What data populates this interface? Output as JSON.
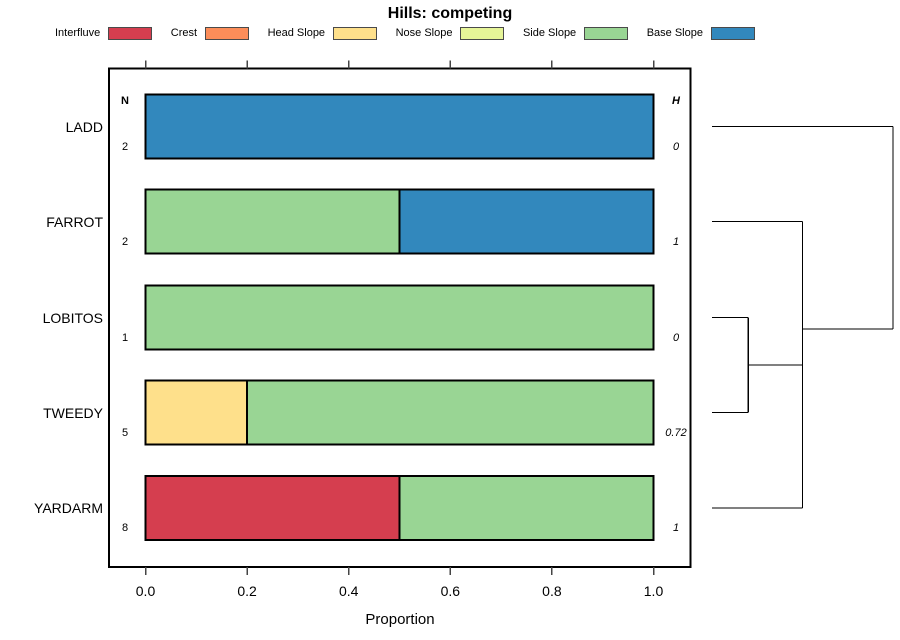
{
  "title": "Hills: competing",
  "legend": {
    "items": [
      {
        "label": "Interfluve",
        "color": "#D53E4F"
      },
      {
        "label": "Crest",
        "color": "#FC8D59"
      },
      {
        "label": "Head Slope",
        "color": "#FEE08B"
      },
      {
        "label": "Nose Slope",
        "color": "#E6F598"
      },
      {
        "label": "Side Slope",
        "color": "#99D594"
      },
      {
        "label": "Base Slope",
        "color": "#3288BD"
      }
    ]
  },
  "chart_data": {
    "type": "bar",
    "orientation": "horizontal",
    "stacked": true,
    "grid": false,
    "legend_position": "top",
    "title": "Hills: competing",
    "xlabel": "Proportion",
    "xlim": [
      0,
      1
    ],
    "xticks": [
      "0.0",
      "0.2",
      "0.4",
      "0.6",
      "0.8",
      "1.0"
    ],
    "categories": [
      "LADD",
      "FARROT",
      "LOBITOS",
      "TWEEDY",
      "YARDARM"
    ],
    "series": [
      {
        "name": "Interfluve",
        "color": "#D53E4F",
        "values": [
          0,
          0,
          0,
          0,
          0.5
        ]
      },
      {
        "name": "Crest",
        "color": "#FC8D59",
        "values": [
          0,
          0,
          0,
          0,
          0
        ]
      },
      {
        "name": "Head Slope",
        "color": "#FEE08B",
        "values": [
          0,
          0,
          0,
          0.2,
          0
        ]
      },
      {
        "name": "Nose Slope",
        "color": "#E6F598",
        "values": [
          0,
          0,
          0,
          0,
          0
        ]
      },
      {
        "name": "Side Slope",
        "color": "#99D594",
        "values": [
          0,
          0.5,
          1,
          0.8,
          0.5
        ]
      },
      {
        "name": "Base Slope",
        "color": "#3288BD",
        "values": [
          1,
          0.5,
          0,
          0,
          0
        ]
      }
    ],
    "left_column": {
      "header": "N",
      "values": [
        "2",
        "2",
        "1",
        "5",
        "8"
      ]
    },
    "right_column": {
      "header": "H",
      "values": [
        "0",
        "1",
        "0",
        "0.72",
        "1"
      ]
    },
    "dendrogram": {
      "side": "right",
      "merges": [
        {
          "a": "LOBITOS",
          "b": "TWEEDY",
          "height": 0.2
        },
        {
          "a": "merge0",
          "b": "YARDARM",
          "height": 0.5
        },
        {
          "a": "FARROT",
          "b": "merge1",
          "height": 0.5
        },
        {
          "a": "LADD",
          "b": "merge2",
          "height": 1.0
        }
      ]
    }
  }
}
